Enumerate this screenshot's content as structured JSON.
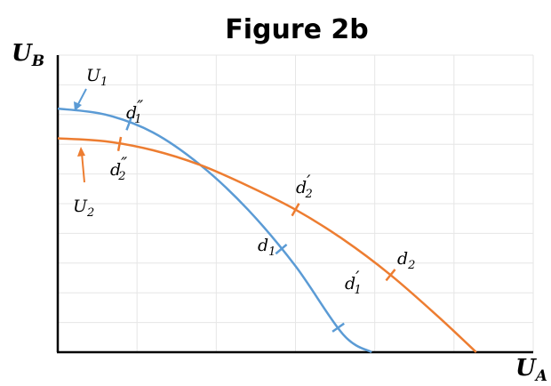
{
  "chart_data": {
    "type": "line",
    "title": "Figure 2b",
    "xlabel": {
      "main": "U",
      "sub": "A"
    },
    "ylabel": {
      "main": "U",
      "sub": "B"
    },
    "xlim": [
      0,
      10
    ],
    "ylim": [
      0,
      10
    ],
    "grid": true,
    "legend": "none",
    "series": [
      {
        "name": {
          "main": "U",
          "sub": "1"
        },
        "color": "#5b9bd5",
        "x": [
          0,
          1,
          2,
          3,
          4,
          5,
          6,
          6.6
        ],
        "y": [
          8.2,
          8.0,
          7.4,
          6.3,
          4.8,
          2.9,
          0.6,
          0
        ]
      },
      {
        "name": {
          "main": "U",
          "sub": "2"
        },
        "color": "#ed7d31",
        "x": [
          0,
          1,
          2,
          3,
          4,
          5,
          6,
          7,
          8,
          8.8
        ],
        "y": [
          7.2,
          7.1,
          6.8,
          6.3,
          5.6,
          4.8,
          3.8,
          2.6,
          1.2,
          0
        ]
      }
    ],
    "annotations": [
      {
        "id": "d1pp",
        "series": 0,
        "x": 1.5,
        "main": "d",
        "sub": "1",
        "prime": "″"
      },
      {
        "id": "d1",
        "series": 0,
        "x": 4.7,
        "main": "d",
        "sub": "1",
        "prime": ""
      },
      {
        "id": "d1p",
        "series": 0,
        "x": 5.9,
        "main": "d",
        "sub": "1",
        "prime": "′"
      },
      {
        "id": "d2pp",
        "series": 1,
        "x": 1.3,
        "main": "d",
        "sub": "2",
        "prime": "″"
      },
      {
        "id": "d2p",
        "series": 1,
        "x": 5.0,
        "main": "d",
        "sub": "2",
        "prime": "′"
      },
      {
        "id": "d2",
        "series": 1,
        "x": 7.0,
        "main": "d",
        "sub": "2",
        "prime": ""
      }
    ]
  }
}
